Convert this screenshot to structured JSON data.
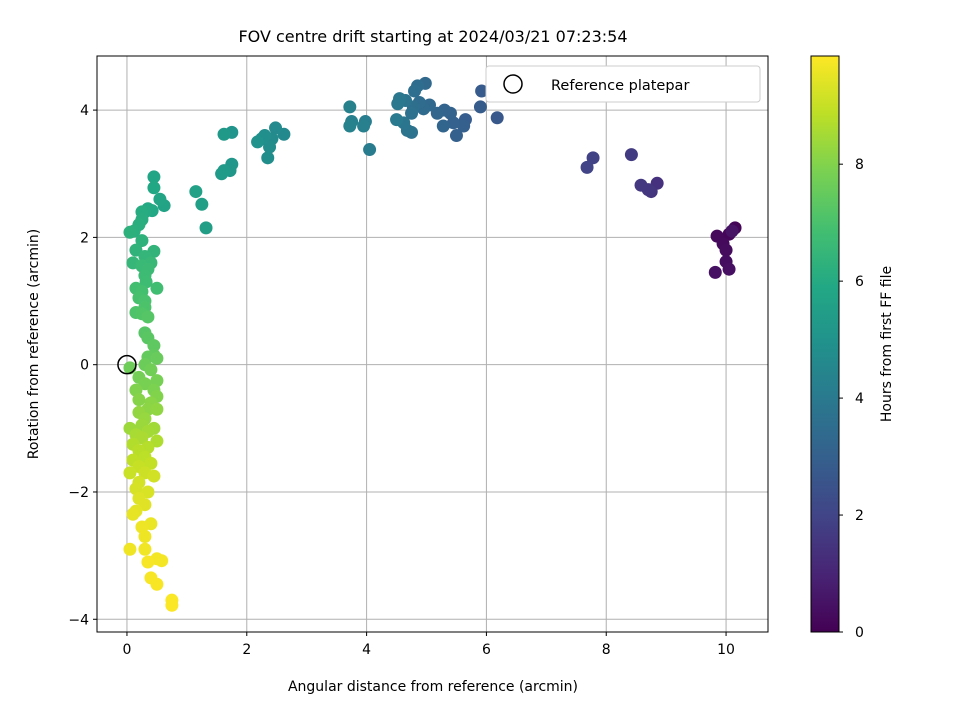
{
  "chart_data": {
    "type": "scatter",
    "title": "FOV centre drift starting at 2024/03/21 07:23:54",
    "xlabel": "Angular distance from reference (arcmin)",
    "ylabel": "Rotation from reference (arcmin)",
    "xlim": [
      -0.5,
      10.7
    ],
    "ylim": [
      -4.2,
      4.85
    ],
    "x_ticks": [
      0,
      2,
      4,
      6,
      8,
      10
    ],
    "y_ticks": [
      -4,
      -2,
      0,
      2,
      4
    ],
    "grid": true,
    "legend": {
      "placement": "top-right",
      "entries": [
        "Reference platepar"
      ]
    },
    "reference_point": {
      "x": 0,
      "y": 0,
      "label": "Reference platepar"
    },
    "colorbar": {
      "label": "Hours from first FF file",
      "range": [
        0,
        9.85
      ],
      "ticks": [
        0,
        2,
        4,
        6,
        8
      ],
      "colormap": "viridis"
    },
    "point_color_value": "hours",
    "points": [
      {
        "x": 10.15,
        "y": 2.15,
        "h": 0.1
      },
      {
        "x": 10.05,
        "y": 2.05,
        "h": 0.15
      },
      {
        "x": 9.85,
        "y": 2.02,
        "h": 0.2
      },
      {
        "x": 9.95,
        "y": 1.9,
        "h": 0.25
      },
      {
        "x": 10.0,
        "y": 1.8,
        "h": 0.3
      },
      {
        "x": 10.0,
        "y": 1.62,
        "h": 0.35
      },
      {
        "x": 10.05,
        "y": 1.5,
        "h": 0.4
      },
      {
        "x": 9.82,
        "y": 1.45,
        "h": 0.45
      },
      {
        "x": 10.1,
        "y": 2.1,
        "h": 0.5
      },
      {
        "x": 8.85,
        "y": 2.85,
        "h": 1.4
      },
      {
        "x": 8.75,
        "y": 2.72,
        "h": 1.5
      },
      {
        "x": 8.7,
        "y": 2.75,
        "h": 1.55
      },
      {
        "x": 8.58,
        "y": 2.82,
        "h": 1.6
      },
      {
        "x": 8.42,
        "y": 3.3,
        "h": 1.7
      },
      {
        "x": 7.78,
        "y": 3.25,
        "h": 1.9
      },
      {
        "x": 7.68,
        "y": 3.1,
        "h": 2.0
      },
      {
        "x": 6.18,
        "y": 3.88,
        "h": 2.7
      },
      {
        "x": 5.92,
        "y": 4.3,
        "h": 2.8
      },
      {
        "x": 5.9,
        "y": 4.05,
        "h": 2.85
      },
      {
        "x": 5.65,
        "y": 3.85,
        "h": 2.9
      },
      {
        "x": 5.62,
        "y": 3.75,
        "h": 2.95
      },
      {
        "x": 5.5,
        "y": 3.6,
        "h": 3.0
      },
      {
        "x": 5.45,
        "y": 3.8,
        "h": 3.05
      },
      {
        "x": 5.4,
        "y": 3.95,
        "h": 3.1
      },
      {
        "x": 5.3,
        "y": 4.0,
        "h": 3.15
      },
      {
        "x": 5.28,
        "y": 3.75,
        "h": 3.2
      },
      {
        "x": 5.18,
        "y": 3.95,
        "h": 3.25
      },
      {
        "x": 5.05,
        "y": 4.08,
        "h": 3.3
      },
      {
        "x": 4.98,
        "y": 4.42,
        "h": 3.35
      },
      {
        "x": 4.95,
        "y": 4.02,
        "h": 3.4
      },
      {
        "x": 4.88,
        "y": 4.12,
        "h": 3.45
      },
      {
        "x": 4.85,
        "y": 4.38,
        "h": 3.5
      },
      {
        "x": 4.8,
        "y": 4.3,
        "h": 3.55
      },
      {
        "x": 4.78,
        "y": 4.05,
        "h": 3.6
      },
      {
        "x": 4.75,
        "y": 3.95,
        "h": 3.65
      },
      {
        "x": 4.75,
        "y": 3.65,
        "h": 3.7
      },
      {
        "x": 4.68,
        "y": 3.68,
        "h": 3.75
      },
      {
        "x": 4.65,
        "y": 4.15,
        "h": 3.8
      },
      {
        "x": 4.62,
        "y": 3.8,
        "h": 3.85
      },
      {
        "x": 4.55,
        "y": 4.18,
        "h": 3.9
      },
      {
        "x": 4.52,
        "y": 4.1,
        "h": 3.95
      },
      {
        "x": 4.5,
        "y": 3.85,
        "h": 4.0
      },
      {
        "x": 4.05,
        "y": 3.38,
        "h": 4.1
      },
      {
        "x": 3.98,
        "y": 3.82,
        "h": 4.15
      },
      {
        "x": 3.95,
        "y": 3.75,
        "h": 4.2
      },
      {
        "x": 3.75,
        "y": 3.82,
        "h": 4.25
      },
      {
        "x": 3.72,
        "y": 4.05,
        "h": 4.3
      },
      {
        "x": 3.72,
        "y": 3.75,
        "h": 4.35
      },
      {
        "x": 2.62,
        "y": 3.62,
        "h": 4.6
      },
      {
        "x": 2.48,
        "y": 3.72,
        "h": 4.65
      },
      {
        "x": 2.42,
        "y": 3.55,
        "h": 4.7
      },
      {
        "x": 2.38,
        "y": 3.42,
        "h": 4.75
      },
      {
        "x": 2.35,
        "y": 3.25,
        "h": 4.8
      },
      {
        "x": 2.3,
        "y": 3.6,
        "h": 4.85
      },
      {
        "x": 2.25,
        "y": 3.55,
        "h": 4.9
      },
      {
        "x": 2.18,
        "y": 3.5,
        "h": 4.95
      },
      {
        "x": 1.75,
        "y": 3.65,
        "h": 5.1
      },
      {
        "x": 1.75,
        "y": 3.15,
        "h": 5.15
      },
      {
        "x": 1.72,
        "y": 3.05,
        "h": 5.2
      },
      {
        "x": 1.62,
        "y": 3.62,
        "h": 5.25
      },
      {
        "x": 1.62,
        "y": 3.05,
        "h": 5.3
      },
      {
        "x": 1.58,
        "y": 3.0,
        "h": 5.35
      },
      {
        "x": 1.32,
        "y": 2.15,
        "h": 5.5
      },
      {
        "x": 1.25,
        "y": 2.52,
        "h": 5.55
      },
      {
        "x": 1.15,
        "y": 2.72,
        "h": 5.6
      },
      {
        "x": 0.62,
        "y": 2.5,
        "h": 5.7
      },
      {
        "x": 0.55,
        "y": 2.6,
        "h": 5.75
      },
      {
        "x": 0.45,
        "y": 2.95,
        "h": 5.8
      },
      {
        "x": 0.45,
        "y": 2.78,
        "h": 5.85
      },
      {
        "x": 0.42,
        "y": 2.42,
        "h": 5.9
      },
      {
        "x": 0.35,
        "y": 2.45,
        "h": 5.95
      },
      {
        "x": 0.3,
        "y": 2.4,
        "h": 6.0
      },
      {
        "x": 0.25,
        "y": 2.4,
        "h": 6.05
      },
      {
        "x": 0.25,
        "y": 2.28,
        "h": 6.1
      },
      {
        "x": 0.2,
        "y": 2.2,
        "h": 6.15
      },
      {
        "x": 0.12,
        "y": 2.1,
        "h": 6.2
      },
      {
        "x": 0.05,
        "y": 2.08,
        "h": 6.25
      },
      {
        "x": 0.25,
        "y": 1.95,
        "h": 6.3
      },
      {
        "x": 0.15,
        "y": 1.8,
        "h": 6.35
      },
      {
        "x": 0.45,
        "y": 1.78,
        "h": 6.4
      },
      {
        "x": 0.3,
        "y": 1.7,
        "h": 6.45
      },
      {
        "x": 0.1,
        "y": 1.6,
        "h": 6.5
      },
      {
        "x": 0.4,
        "y": 1.6,
        "h": 6.55
      },
      {
        "x": 0.25,
        "y": 1.55,
        "h": 6.6
      },
      {
        "x": 0.35,
        "y": 1.5,
        "h": 6.65
      },
      {
        "x": 0.3,
        "y": 1.4,
        "h": 6.7
      },
      {
        "x": 0.32,
        "y": 1.3,
        "h": 6.75
      },
      {
        "x": 0.5,
        "y": 1.2,
        "h": 6.8
      },
      {
        "x": 0.15,
        "y": 1.2,
        "h": 6.85
      },
      {
        "x": 0.25,
        "y": 1.15,
        "h": 6.9
      },
      {
        "x": 0.2,
        "y": 1.05,
        "h": 6.95
      },
      {
        "x": 0.3,
        "y": 1.0,
        "h": 7.0
      },
      {
        "x": 0.3,
        "y": 0.9,
        "h": 7.05
      },
      {
        "x": 0.15,
        "y": 0.82,
        "h": 7.1
      },
      {
        "x": 0.25,
        "y": 0.8,
        "h": 7.15
      },
      {
        "x": 0.35,
        "y": 0.75,
        "h": 7.2
      },
      {
        "x": 0.3,
        "y": 0.5,
        "h": 7.25
      },
      {
        "x": 0.35,
        "y": 0.42,
        "h": 7.3
      },
      {
        "x": 0.45,
        "y": 0.3,
        "h": 7.4
      },
      {
        "x": 0.45,
        "y": 0.15,
        "h": 7.45
      },
      {
        "x": 0.35,
        "y": 0.12,
        "h": 7.5
      },
      {
        "x": 0.5,
        "y": 0.1,
        "h": 7.55
      },
      {
        "x": 0.3,
        "y": 0.0,
        "h": 7.6
      },
      {
        "x": 0.05,
        "y": -0.05,
        "h": 7.65
      },
      {
        "x": 0.4,
        "y": -0.08,
        "h": 7.7
      },
      {
        "x": 0.2,
        "y": -0.2,
        "h": 7.75
      },
      {
        "x": 0.5,
        "y": -0.25,
        "h": 7.8
      },
      {
        "x": 0.3,
        "y": -0.3,
        "h": 7.85
      },
      {
        "x": 0.45,
        "y": -0.4,
        "h": 7.9
      },
      {
        "x": 0.15,
        "y": -0.4,
        "h": 7.95
      },
      {
        "x": 0.5,
        "y": -0.5,
        "h": 8.0
      },
      {
        "x": 0.2,
        "y": -0.55,
        "h": 8.05
      },
      {
        "x": 0.4,
        "y": -0.6,
        "h": 8.1
      },
      {
        "x": 0.35,
        "y": -0.7,
        "h": 8.15
      },
      {
        "x": 0.5,
        "y": -0.7,
        "h": 8.2
      },
      {
        "x": 0.2,
        "y": -0.75,
        "h": 8.25
      },
      {
        "x": 0.3,
        "y": -0.85,
        "h": 8.3
      },
      {
        "x": 0.25,
        "y": -0.95,
        "h": 8.35
      },
      {
        "x": 0.05,
        "y": -1.0,
        "h": 8.4
      },
      {
        "x": 0.45,
        "y": -1.0,
        "h": 8.45
      },
      {
        "x": 0.35,
        "y": -1.05,
        "h": 8.5
      },
      {
        "x": 0.15,
        "y": -1.1,
        "h": 8.55
      },
      {
        "x": 0.25,
        "y": -1.15,
        "h": 8.6
      },
      {
        "x": 0.5,
        "y": -1.2,
        "h": 8.65
      },
      {
        "x": 0.1,
        "y": -1.25,
        "h": 8.7
      },
      {
        "x": 0.35,
        "y": -1.3,
        "h": 8.75
      },
      {
        "x": 0.2,
        "y": -1.35,
        "h": 8.8
      },
      {
        "x": 0.3,
        "y": -1.45,
        "h": 8.85
      },
      {
        "x": 0.1,
        "y": -1.5,
        "h": 8.9
      },
      {
        "x": 0.4,
        "y": -1.55,
        "h": 8.95
      },
      {
        "x": 0.2,
        "y": -1.6,
        "h": 9.0
      },
      {
        "x": 0.05,
        "y": -1.7,
        "h": 9.05
      },
      {
        "x": 0.3,
        "y": -1.7,
        "h": 9.1
      },
      {
        "x": 0.45,
        "y": -1.75,
        "h": 9.15
      },
      {
        "x": 0.2,
        "y": -1.85,
        "h": 9.2
      },
      {
        "x": 0.15,
        "y": -1.95,
        "h": 9.25
      },
      {
        "x": 0.35,
        "y": -2.0,
        "h": 9.3
      },
      {
        "x": 0.2,
        "y": -2.1,
        "h": 9.35
      },
      {
        "x": 0.3,
        "y": -2.2,
        "h": 9.4
      },
      {
        "x": 0.15,
        "y": -2.3,
        "h": 9.45
      },
      {
        "x": 0.1,
        "y": -2.35,
        "h": 9.5
      },
      {
        "x": 0.4,
        "y": -2.5,
        "h": 9.55
      },
      {
        "x": 0.25,
        "y": -2.55,
        "h": 9.6
      },
      {
        "x": 0.3,
        "y": -2.7,
        "h": 9.62
      },
      {
        "x": 0.05,
        "y": -2.9,
        "h": 9.65
      },
      {
        "x": 0.3,
        "y": -2.9,
        "h": 9.67
      },
      {
        "x": 0.5,
        "y": -3.05,
        "h": 9.7
      },
      {
        "x": 0.58,
        "y": -3.08,
        "h": 9.72
      },
      {
        "x": 0.35,
        "y": -3.1,
        "h": 9.74
      },
      {
        "x": 0.4,
        "y": -3.35,
        "h": 9.76
      },
      {
        "x": 0.5,
        "y": -3.45,
        "h": 9.78
      },
      {
        "x": 0.75,
        "y": -3.7,
        "h": 9.8
      },
      {
        "x": 0.75,
        "y": -3.78,
        "h": 9.82
      }
    ]
  }
}
